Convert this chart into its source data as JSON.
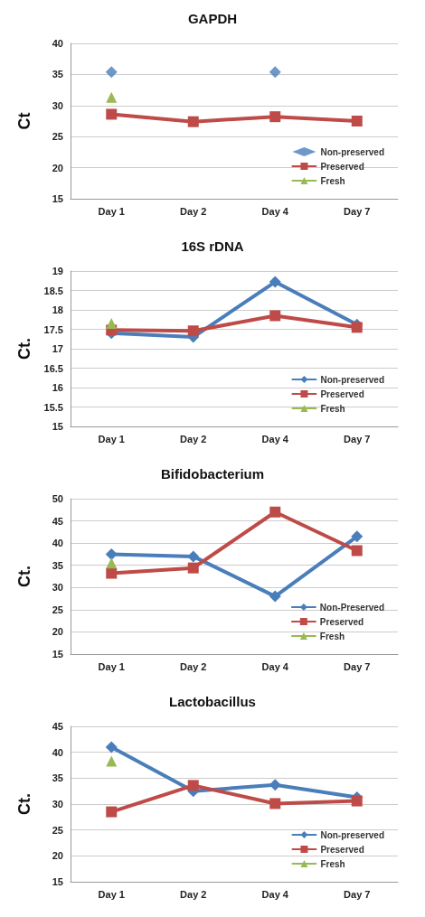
{
  "chart_data": [
    {
      "type": "line",
      "title": "GAPDH",
      "ylabel": "Ct",
      "categories": [
        "Day 1",
        "Day 2",
        "Day 4",
        "Day 7"
      ],
      "ylim": [
        15,
        40
      ],
      "yticks": [
        15,
        20,
        25,
        30,
        35,
        40
      ],
      "grid": "y",
      "legend": "bottom right",
      "series": [
        {
          "name": "Non-preserved",
          "type": "scatter",
          "color": "#4a7ebb",
          "marker": "diamond",
          "values": [
            35.4,
            null,
            35.4,
            null
          ]
        },
        {
          "name": "Preserved",
          "color": "#be4b48",
          "marker": "square",
          "values": [
            28.6,
            27.4,
            28.2,
            27.5
          ]
        },
        {
          "name": "Fresh",
          "color": "#98b954",
          "marker": "triangle",
          "values": [
            31.3,
            null,
            null,
            null
          ]
        }
      ]
    },
    {
      "type": "line",
      "title": "16S rDNA",
      "ylabel": "Ct.",
      "categories": [
        "Day 1",
        "Day 2",
        "Day 4",
        "Day 7"
      ],
      "ylim": [
        15,
        19
      ],
      "yticks": [
        15,
        15.5,
        16,
        16.5,
        17,
        17.5,
        18,
        18.5,
        19
      ],
      "grid": "y",
      "legend": "bottom right",
      "series": [
        {
          "name": "Non-preserved",
          "color": "#4a7ebb",
          "marker": "diamond",
          "values": [
            17.4,
            17.3,
            18.72,
            17.62
          ]
        },
        {
          "name": "Preserved",
          "color": "#be4b48",
          "marker": "square",
          "values": [
            17.48,
            17.46,
            17.85,
            17.55
          ]
        },
        {
          "name": "Fresh",
          "color": "#98b954",
          "marker": "triangle",
          "values": [
            17.65,
            null,
            null,
            null
          ]
        }
      ]
    },
    {
      "type": "line",
      "title": "Bifidobacterium",
      "ylabel": "Ct.",
      "categories": [
        "Day 1",
        "Day 2",
        "Day 4",
        "Day 7"
      ],
      "ylim": [
        15,
        50
      ],
      "yticks": [
        15,
        20,
        25,
        30,
        35,
        40,
        45,
        50
      ],
      "grid": "y",
      "legend": "bottom right",
      "series": [
        {
          "name": "Non-Preserved",
          "color": "#4a7ebb",
          "marker": "diamond",
          "values": [
            37.5,
            37.0,
            28.0,
            41.5
          ]
        },
        {
          "name": "Preserved",
          "color": "#be4b48",
          "marker": "square",
          "values": [
            33.2,
            34.4,
            47.0,
            38.3
          ]
        },
        {
          "name": "Fresh",
          "color": "#98b954",
          "marker": "triangle",
          "values": [
            35.5,
            null,
            null,
            null
          ]
        }
      ]
    },
    {
      "type": "line",
      "title": "Lactobacillus",
      "ylabel": "Ct.",
      "categories": [
        "Day 1",
        "Day 2",
        "Day 4",
        "Day 7"
      ],
      "ylim": [
        15,
        45
      ],
      "yticks": [
        15,
        20,
        25,
        30,
        35,
        40,
        45
      ],
      "grid": "y",
      "legend": "bottom right",
      "series": [
        {
          "name": "Non-preserved",
          "color": "#4a7ebb",
          "marker": "diamond",
          "values": [
            41.0,
            32.5,
            33.7,
            31.3
          ]
        },
        {
          "name": "Preserved",
          "color": "#be4b48",
          "marker": "square",
          "values": [
            28.5,
            33.6,
            30.1,
            30.6
          ]
        },
        {
          "name": "Fresh",
          "color": "#98b954",
          "marker": "triangle",
          "values": [
            38.3,
            null,
            null,
            null
          ]
        }
      ]
    }
  ]
}
